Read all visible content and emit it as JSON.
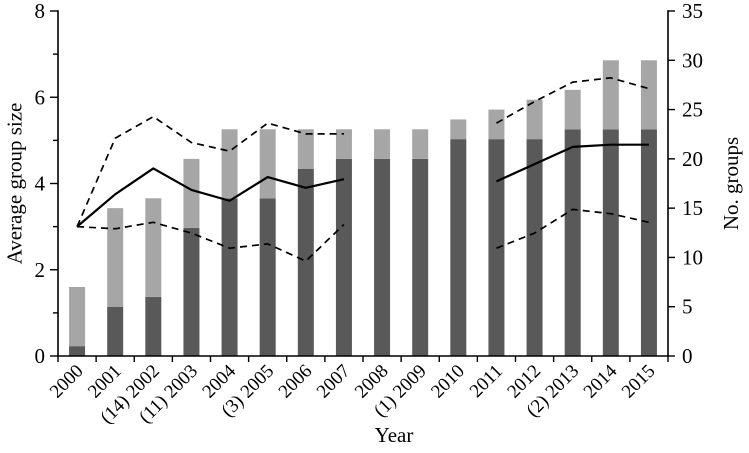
{
  "chart_data": {
    "type": "combo-stacked-bar-line",
    "title": "",
    "categories": [
      "2000",
      "2001",
      "(14) 2002",
      "(11) 2003",
      "2004",
      "(3) 2005",
      "2006",
      "2007",
      "2008",
      "(1) 2009",
      "2010",
      "2011",
      "2012",
      "(2) 2013",
      "2014",
      "2015"
    ],
    "series": [
      {
        "name": "no-groups-dark-segment",
        "type": "bar",
        "axis": "right",
        "color_key": "dark_bar",
        "values": [
          1,
          5,
          6,
          13,
          16,
          16,
          19,
          20,
          20,
          20,
          22,
          22,
          22,
          23,
          23,
          23
        ]
      },
      {
        "name": "no-groups-light-segment",
        "type": "bar",
        "axis": "right",
        "color_key": "light_bar",
        "values": [
          6,
          10,
          10,
          7,
          7,
          7,
          4,
          3,
          3,
          3,
          2,
          3,
          4,
          4,
          7,
          7
        ]
      },
      {
        "name": "average-group-size-mean",
        "type": "line",
        "axis": "left",
        "dash": false,
        "values": [
          3.0,
          3.75,
          4.35,
          3.85,
          3.6,
          4.15,
          3.9,
          4.1,
          null,
          null,
          null,
          4.05,
          4.45,
          4.85,
          4.9,
          4.9
        ]
      },
      {
        "name": "average-group-size-upper-ci",
        "type": "line",
        "axis": "left",
        "dash": true,
        "values": [
          3.0,
          5.05,
          5.55,
          4.95,
          4.75,
          5.4,
          5.15,
          5.15,
          null,
          null,
          null,
          5.4,
          5.9,
          6.35,
          6.45,
          6.2
        ]
      },
      {
        "name": "average-group-size-lower-ci",
        "type": "line",
        "axis": "left",
        "dash": true,
        "values": [
          3.0,
          2.95,
          3.1,
          2.85,
          2.5,
          2.6,
          2.2,
          3.05,
          null,
          null,
          null,
          2.5,
          2.85,
          3.4,
          3.3,
          3.1
        ]
      }
    ],
    "axes": {
      "left": {
        "title": "Average group size",
        "min": 0,
        "max": 8,
        "tick_labels": [
          0,
          2,
          4,
          6,
          8
        ],
        "minor_ticks": [
          1,
          3,
          5,
          7
        ]
      },
      "right": {
        "title": "No. groups",
        "min": 0,
        "max": 35,
        "tick_labels": [
          0,
          5,
          10,
          15,
          20,
          25,
          30,
          35
        ]
      },
      "x": {
        "title": "Year"
      }
    },
    "colors": {
      "dark_bar": "#595959",
      "light_bar": "#a6a6a6",
      "line": "#000000",
      "axis": "#000000"
    },
    "legend": "none",
    "grid": "off"
  }
}
